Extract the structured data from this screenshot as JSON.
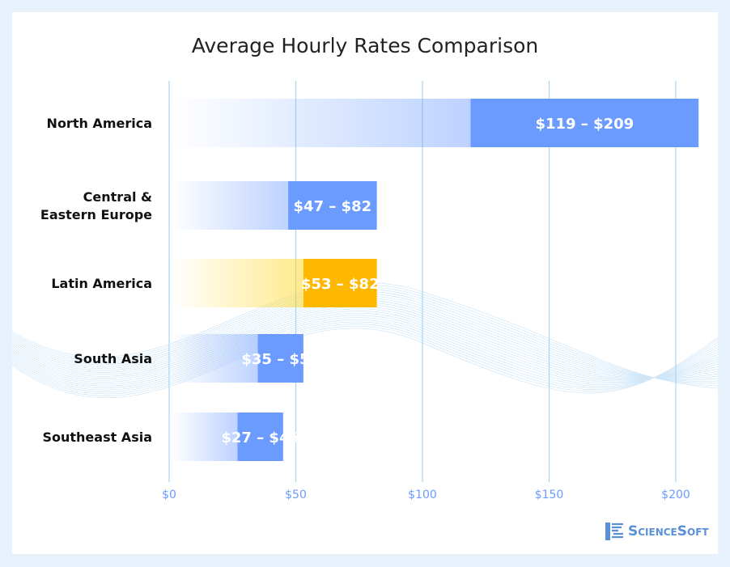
{
  "chart_data": {
    "type": "bar",
    "title": "Average Hourly Rates Comparison",
    "categories": [
      "North America",
      "Central & Eastern Europe",
      "Latin America",
      "South Asia",
      "Southeast Asia"
    ],
    "category_lines": [
      [
        "North America"
      ],
      [
        "Central &",
        "Eastern Europe"
      ],
      [
        "Latin America"
      ],
      [
        "South Asia"
      ],
      [
        "Southeast Asia"
      ]
    ],
    "series": [
      {
        "low": [
          119,
          47,
          53,
          35,
          27
        ],
        "high": [
          209,
          82,
          82,
          53,
          45
        ],
        "labels": [
          "$119 – $209",
          "$47 – $82",
          "$53 – $82",
          "$35 – $53",
          "$27 – $45"
        ]
      }
    ],
    "highlight_index": 2,
    "xlim": [
      0,
      200
    ],
    "xticks": [
      0,
      50,
      100,
      150,
      200
    ],
    "xtick_labels": [
      "$0",
      "$50",
      "$100",
      "$150",
      "$200"
    ],
    "grid": true,
    "colors": {
      "bar": "#6b9bff",
      "highlight": "#ffb800",
      "grid": "#a9d6f5",
      "tick": "#6b9bff"
    }
  },
  "logo": {
    "text": "ScienceSoft"
  }
}
